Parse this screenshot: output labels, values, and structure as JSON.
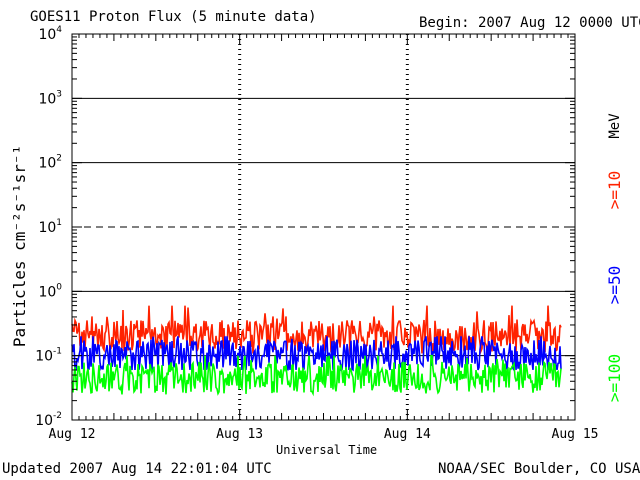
{
  "header": {
    "title": "GOES11 Proton Flux (5 minute data)",
    "begin": "Begin: 2007 Aug 12 0000 UTC"
  },
  "footer": {
    "updated": "Updated 2007 Aug 14 22:01:04 UTC",
    "credit": "NOAA/SEC Boulder, CO USA"
  },
  "chart_data": {
    "type": "line",
    "title": "GOES11 Proton Flux (5 minute data)",
    "xlabel": "Universal Time",
    "ylabel": "Particles cm⁻²s⁻¹sr⁻¹",
    "y_scale": "log",
    "ylim": [
      0.01,
      10000
    ],
    "x_range": [
      "Aug 12",
      "Aug 15"
    ],
    "x_ticks": [
      "Aug 12",
      "Aug 13",
      "Aug 14",
      "Aug 15"
    ],
    "y_ticks": [
      "10⁻²",
      "10⁻¹",
      "10⁰",
      "10¹",
      "10²",
      "10³",
      "10⁴"
    ],
    "grid": "horizontal lines at each decade (10¹ dashed), dotted day markers",
    "data_end": "Aug 14 22:00",
    "units_label": "MeV",
    "series": [
      {
        "name": ">=10",
        "color": "#ff2200",
        "typical": 0.2,
        "min": 0.1,
        "max": 0.6
      },
      {
        "name": ">=50",
        "color": "#0000ff",
        "typical": 0.1,
        "min": 0.06,
        "max": 0.2
      },
      {
        "name": ">=100",
        "color": "#00ff00",
        "typical": 0.045,
        "min": 0.025,
        "max": 0.1
      }
    ]
  }
}
